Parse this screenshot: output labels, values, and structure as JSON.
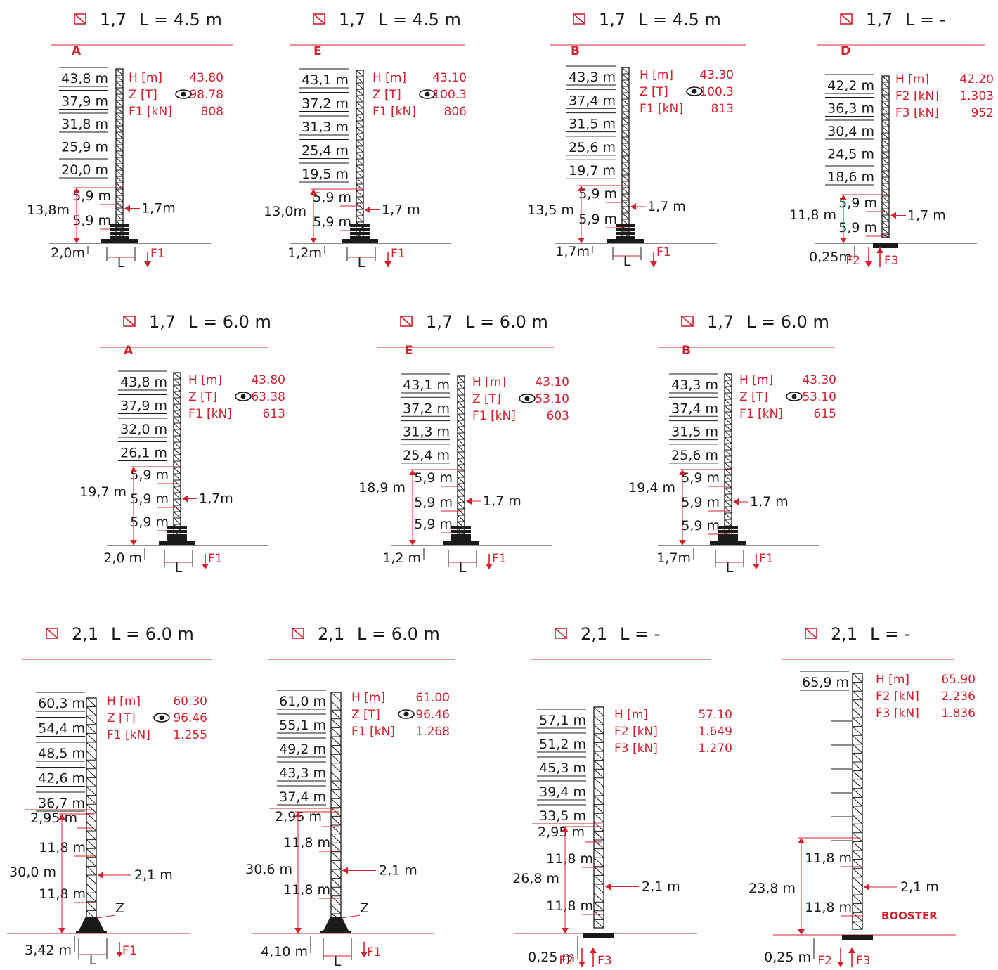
{
  "colors": {
    "accent": "#d6202e",
    "ink": "#1a1a1a",
    "background": "#ffffff"
  },
  "icons": {
    "section_symbol": "square-slash-icon",
    "view_symbol": "eye-icon"
  },
  "panels": [
    {
      "title": {
        "symbol": "⧄",
        "size": "1,7",
        "length": "L = 4.5  m"
      },
      "type_letter": "A",
      "levels": [
        "43,8 m",
        "37,9 m",
        "31,8 m",
        "25,9 m",
        "20,0 m"
      ],
      "segments": [
        "5,9 m",
        "5,9 m"
      ],
      "total_height": "13,8m",
      "width_label": "1,7m",
      "base_height": "2,0m",
      "base_labels": [
        "L",
        "F1"
      ],
      "specs": [
        [
          "H  [m]",
          "43.80"
        ],
        [
          "Z  [T]",
          "98.78"
        ],
        [
          "F1  [kN]",
          "808"
        ]
      ]
    },
    {
      "title": {
        "symbol": "⧄",
        "size": "1,7",
        "length": "L = 4.5  m"
      },
      "type_letter": "E",
      "levels": [
        "43,1 m",
        "37,2 m",
        "31,3 m",
        "25,4 m",
        "19,5 m"
      ],
      "segments": [
        "5,9 m",
        "5,9 m"
      ],
      "total_height": "13,0m",
      "width_label": "1,7 m",
      "base_height": "1,2m",
      "base_labels": [
        "L",
        "F1"
      ],
      "specs": [
        [
          "H  [m]",
          "43.10"
        ],
        [
          "Z  [T]",
          "100.3"
        ],
        [
          "F1  [kN]",
          "806"
        ]
      ]
    },
    {
      "title": {
        "symbol": "⧄",
        "size": "1,7",
        "length": "L = 4.5  m"
      },
      "type_letter": "B",
      "levels": [
        "43,3 m",
        "37,4 m",
        "31,5 m",
        "25,6 m",
        "19,7 m"
      ],
      "segments": [
        "5,9 m",
        "5,9 m"
      ],
      "total_height": "13,5 m",
      "width_label": "1,7 m",
      "base_height": "1,7m",
      "base_labels": [
        "L",
        "F1"
      ],
      "specs": [
        [
          "H  [m]",
          "43.30"
        ],
        [
          "Z  [T]",
          "100.3"
        ],
        [
          "F1  [kN]",
          "813"
        ]
      ]
    },
    {
      "title": {
        "symbol": "⧄",
        "size": "1,7",
        "length": "L = -"
      },
      "type_letter": "D",
      "levels": [
        "42,2 m",
        "36,3 m",
        "30,4 m",
        "24,5 m",
        "18,6 m"
      ],
      "segments": [
        "5,9 m",
        "5,9 m"
      ],
      "total_height": "11,8 m",
      "width_label": "1,7 m",
      "base_height": "0,25m",
      "base_labels": [
        "F2",
        "F3"
      ],
      "specs": [
        [
          "H  [m]",
          "42.20"
        ],
        [
          "F2  [kN]",
          "1.303"
        ],
        [
          "F3  [kN]",
          "952"
        ]
      ]
    },
    {
      "title": {
        "symbol": "⧄",
        "size": "1,7",
        "length": "L = 6.0  m"
      },
      "type_letter": "A",
      "levels": [
        "43,8 m",
        "37,9 m",
        "32,0 m",
        "26,1 m"
      ],
      "segments": [
        "5,9 m",
        "5,9 m",
        "5,9 m"
      ],
      "total_height": "19,7 m",
      "width_label": "1,7m",
      "base_height": "2,0 m",
      "base_labels": [
        "L",
        "F1"
      ],
      "specs": [
        [
          "H  [m]",
          "43.80"
        ],
        [
          "Z  [T]",
          "63.38"
        ],
        [
          "F1  [kN]",
          "613"
        ]
      ]
    },
    {
      "title": {
        "symbol": "⧄",
        "size": "1,7",
        "length": "L = 6.0  m"
      },
      "type_letter": "E",
      "levels": [
        "43,1 m",
        "37,2 m",
        "31,3 m",
        "25,4 m"
      ],
      "segments": [
        "5,9 m",
        "5,9 m",
        "5,9 m"
      ],
      "total_height": "18,9 m",
      "width_label": "1,7 m",
      "base_height": "1,2 m",
      "base_labels": [
        "L",
        "F1"
      ],
      "specs": [
        [
          "H  [m]",
          "43.10"
        ],
        [
          "Z  [T]",
          "53.10"
        ],
        [
          "F1  [kN]",
          "603"
        ]
      ]
    },
    {
      "title": {
        "symbol": "⧄",
        "size": "1,7",
        "length": "L = 6.0  m"
      },
      "type_letter": "B",
      "levels": [
        "43,3 m",
        "37,4 m",
        "31,5 m",
        "25,6 m"
      ],
      "segments": [
        "5,9 m",
        "5,9 m",
        "5,9 m"
      ],
      "total_height": "19,4 m",
      "width_label": "1,7 m",
      "base_height": "1,7m",
      "base_labels": [
        "L",
        "F1"
      ],
      "specs": [
        [
          "H  [m]",
          "43.30"
        ],
        [
          "Z  [T]",
          "53.10"
        ],
        [
          "F1  [kN]",
          "615"
        ]
      ]
    },
    {
      "title": {
        "symbol": "⧄",
        "size": "2,1",
        "length": "L = 6.0  m"
      },
      "type_letter": "",
      "levels": [
        "60,3 m",
        "54,4 m",
        "48,5 m",
        "42,6 m",
        "36,7 m"
      ],
      "top_segment": "2,95 m",
      "segments": [
        "11,8 m",
        "11,8 m"
      ],
      "total_height": "30,0 m",
      "width_label": "2,1 m",
      "base_height": "3,42 m",
      "z_label": "Z",
      "base_labels": [
        "L",
        "F1"
      ],
      "specs": [
        [
          "H  [m]",
          "60.30"
        ],
        [
          "Z  [T]",
          "96.46"
        ],
        [
          "F1  [kN]",
          "1.255"
        ]
      ]
    },
    {
      "title": {
        "symbol": "⧄",
        "size": "2,1",
        "length": "L = 6.0  m"
      },
      "type_letter": "",
      "levels": [
        "61,0 m",
        "55,1 m",
        "49,2 m",
        "43,3 m",
        "37,4 m"
      ],
      "top_segment": "2,95 m",
      "segments": [
        "11,8 m",
        "11,8 m"
      ],
      "total_height": "30,6 m",
      "width_label": "2,1 m",
      "base_height": "4,10 m",
      "z_label": "Z",
      "base_labels": [
        "L",
        "F1"
      ],
      "specs": [
        [
          "H  [m]",
          "61.00"
        ],
        [
          "Z  [T]",
          "96.46"
        ],
        [
          "F1  [kN]",
          "1.268"
        ]
      ]
    },
    {
      "title": {
        "symbol": "⧄",
        "size": "2,1",
        "length": "L =  -"
      },
      "type_letter": "",
      "levels": [
        "57,1 m",
        "51,2 m",
        "45,3 m",
        "39,4 m",
        "33,5 m"
      ],
      "top_segment": "2,95 m",
      "segments": [
        "11,8 m",
        "11,8 m"
      ],
      "total_height": "26,8 m",
      "width_label": "2,1 m",
      "base_height": "0,25 m",
      "base_labels": [
        "F2",
        "F3"
      ],
      "specs": [
        [
          "H  [m]",
          "57.10"
        ],
        [
          "F2  [kN]",
          "1.649"
        ],
        [
          "F3  [kN]",
          "1.270"
        ]
      ]
    },
    {
      "title": {
        "symbol": "⧄",
        "size": "2,1",
        "length": "L = -"
      },
      "type_letter": "",
      "levels": [
        "65,9 m"
      ],
      "segments": [
        "11,8 m",
        "11,8 m"
      ],
      "total_height": "23,8 m",
      "width_label": "2,1 m",
      "base_height": "0,25 m",
      "booster_label": "BOOSTER",
      "base_labels": [
        "F2",
        "F3"
      ],
      "specs": [
        [
          "H  [m]",
          "65.90"
        ],
        [
          "F2  [kN]",
          "2.236"
        ],
        [
          "F3  [kN]",
          "1.836"
        ]
      ]
    }
  ]
}
